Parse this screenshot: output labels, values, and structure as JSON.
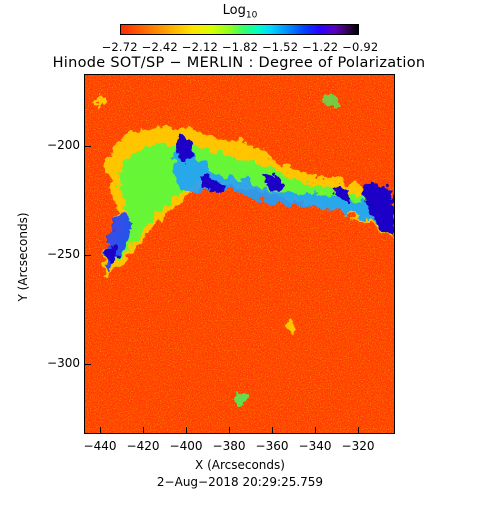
{
  "colorbar": {
    "title_main": "Log",
    "title_sub": "10",
    "ticks_text": "−2.72 −2.42 −2.12 −1.82 −1.52 −1.22 −0.92",
    "tick_values": [
      -2.72,
      -2.42,
      -2.12,
      -1.82,
      -1.52,
      -1.22,
      -0.92
    ]
  },
  "title": "Hinode SOT/SP − MERLIN : Degree of Polarization",
  "axes": {
    "xlabel": "X (Arcseconds)",
    "ylabel": "Y (Arcseconds)",
    "x_ticks": [
      "−440",
      "−420",
      "−400",
      "−380",
      "−360",
      "−340",
      "−320"
    ],
    "y_ticks": [
      "−200",
      "−250",
      "−300"
    ]
  },
  "timestamp": "2−Aug−2018 20:29:25.759"
}
